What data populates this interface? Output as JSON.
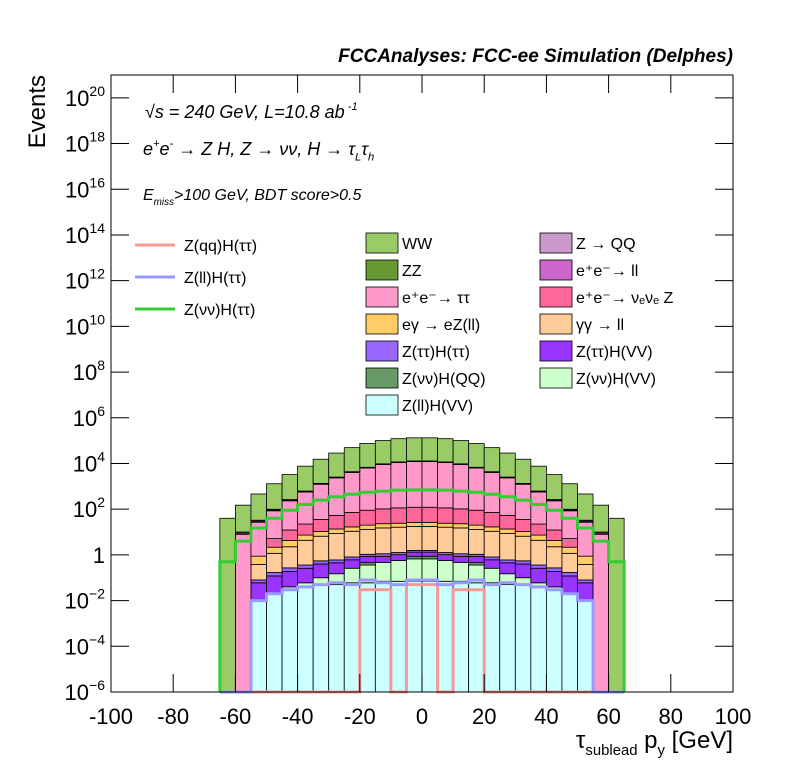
{
  "chart_data": {
    "type": "stacked_histogram",
    "title": "FCCAnalyses: FCC-ee Simulation (Delphes)",
    "annotations": [
      [
        "√s = 240 GeV, L=10.8 ab",
        {
          "sup": " -1"
        }
      ],
      [
        "e",
        {
          "sup": "+"
        },
        "e",
        {
          "sup": "-"
        },
        " → Z H, Z  → νν, H → τ",
        {
          "sub": "L"
        },
        "τ",
        {
          "sub": "h"
        }
      ],
      [
        "E",
        {
          "sub": "miss"
        },
        ">100 GeV, BDT score>0.5"
      ]
    ],
    "x_label": [
      "τ",
      {
        "sub": "sublead"
      },
      " p",
      {
        "sub": "y"
      },
      " [GeV]"
    ],
    "y_label": "Events",
    "log_y": true,
    "xlim": [
      -100,
      100
    ],
    "xticks": [
      -100,
      -80,
      -60,
      -40,
      -20,
      0,
      20,
      40,
      60,
      80,
      100
    ],
    "ylim": [
      1e-06,
      1e+21
    ],
    "yticks": [
      {
        "value": 1e-06,
        "label": "10",
        "sup": "−6"
      },
      {
        "value": 0.0001,
        "label": "10",
        "sup": "−4"
      },
      {
        "value": 0.01,
        "label": "10",
        "sup": "−2"
      },
      1,
      {
        "value": 100.0,
        "label": "10",
        "sup": "2"
      },
      {
        "value": 10000.0,
        "label": "10",
        "sup": "4"
      },
      {
        "value": 1000000.0,
        "label": "10",
        "sup": "6"
      },
      {
        "value": 100000000.0,
        "label": "10",
        "sup": "8"
      },
      {
        "value": 10000000000.0,
        "label": "10",
        "sup": "10"
      },
      {
        "value": 1000000000000.0,
        "label": "10",
        "sup": "12"
      },
      {
        "value": 100000000000000.0,
        "label": "10",
        "sup": "14"
      },
      {
        "value": 1e+16,
        "label": "10",
        "sup": "16"
      },
      {
        "value": 1e+18,
        "label": "10",
        "sup": "18"
      },
      {
        "value": 1e+20,
        "label": "10",
        "sup": "20"
      }
    ],
    "bins": [
      -65,
      -60,
      -55,
      -50,
      -45,
      -40,
      -35,
      -30,
      -25,
      -20,
      -15,
      -10,
      -5,
      0,
      5,
      10,
      15,
      20,
      25,
      30,
      35,
      40,
      45,
      50,
      55,
      60,
      65
    ],
    "series": [
      {
        "name": "WW",
        "color": "#99cc66",
        "values": [
          40,
          140,
          430,
          1200,
          3000,
          7000,
          14000,
          26000,
          45000,
          68000,
          91000,
          110000,
          120000,
          120000,
          110000,
          91000,
          68000,
          45000,
          26000,
          14000,
          7000,
          3000,
          1200,
          430,
          140,
          40
        ]
      },
      {
        "name": "Z → QQ",
        "color": "#cc99cc",
        "values": [
          0,
          0,
          0,
          0,
          0,
          0,
          0,
          0,
          0,
          0,
          0,
          0,
          150,
          150,
          0,
          0,
          0,
          0,
          0,
          0,
          0,
          0,
          0,
          0,
          0,
          0
        ]
      },
      {
        "name": "ZZ",
        "color": "#669933",
        "values": [
          0,
          1,
          3,
          8,
          20,
          40,
          80,
          150,
          250,
          350,
          450,
          500,
          520,
          520,
          500,
          450,
          350,
          250,
          150,
          80,
          40,
          20,
          8,
          3,
          1,
          0
        ]
      },
      {
        "name": "e⁺e⁻→ ll",
        "color": "#cc66cc",
        "values": [
          0,
          1,
          3,
          6,
          12,
          20,
          30,
          40,
          50,
          60,
          70,
          75,
          80,
          80,
          75,
          70,
          60,
          50,
          40,
          30,
          20,
          12,
          6,
          3,
          1,
          0
        ]
      },
      {
        "name": "e⁺e⁻→ ττ",
        "color": "#ff99cc",
        "values": [
          0,
          8,
          26,
          80,
          220,
          540,
          1200,
          2300,
          4000,
          6300,
          9000,
          11000,
          12000,
          12000,
          11000,
          9000,
          6300,
          4000,
          2300,
          1200,
          540,
          220,
          80,
          26,
          8,
          0
        ]
      },
      {
        "name": "e⁺e⁻→ νₑνₑ Z",
        "color": "#ff6699",
        "values": [
          0,
          0,
          0,
          3,
          8,
          15,
          25,
          40,
          55,
          70,
          80,
          90,
          95,
          95,
          90,
          80,
          70,
          55,
          40,
          25,
          15,
          8,
          3,
          0,
          0,
          0
        ]
      },
      {
        "name": "eγ → eZ(ll)",
        "color": "#ffcc66",
        "values": [
          0,
          0,
          0.5,
          1,
          2,
          3,
          4,
          5,
          6,
          7,
          8,
          8,
          9,
          9,
          8,
          8,
          7,
          6,
          5,
          4,
          3,
          2,
          1,
          0.5,
          0,
          0
        ]
      },
      {
        "name": "γγ → ll",
        "color": "#ffcc99",
        "values": [
          0,
          0,
          0.3,
          1,
          2,
          4,
          6,
          8,
          10,
          12,
          14,
          15,
          16,
          16,
          15,
          14,
          12,
          10,
          8,
          6,
          4,
          2,
          1,
          0.3,
          0,
          0
        ]
      },
      {
        "name": "Z(ττ)H(ττ)",
        "color": "#9966ff",
        "values": [
          0,
          0,
          0.02,
          0.05,
          0.08,
          0.1,
          0.15,
          0.15,
          0.2,
          0.2,
          0.25,
          0.25,
          0.25,
          0.25,
          0.25,
          0.25,
          0.2,
          0.2,
          0.15,
          0.15,
          0.1,
          0.08,
          0.05,
          0.02,
          0,
          0
        ]
      },
      {
        "name": "Z(ττ)H(VV)",
        "color": "#9933ff",
        "values": [
          0,
          0,
          0.05,
          0.1,
          0.15,
          0.2,
          0.3,
          0.3,
          0.35,
          0.4,
          0.4,
          0.45,
          0.45,
          0.45,
          0.45,
          0.4,
          0.4,
          0.35,
          0.3,
          0.3,
          0.2,
          0.15,
          0.1,
          0.05,
          0,
          0
        ]
      },
      {
        "name": "Z(νν)H(QQ)",
        "color": "#669966",
        "values": [
          0,
          0,
          0,
          0,
          0,
          0,
          0,
          0,
          0,
          0.1,
          0,
          0,
          0.2,
          0.2,
          0,
          0,
          0.1,
          0,
          0,
          0,
          0,
          0,
          0,
          0,
          0,
          0
        ]
      },
      {
        "name": "Z(νν)H(VV)",
        "color": "#ccffcc",
        "values": [
          0,
          0,
          0,
          0,
          0.01,
          0.02,
          0.05,
          0.1,
          0.2,
          0.3,
          0.4,
          0.5,
          0.6,
          0.6,
          0.5,
          0.4,
          0.3,
          0.2,
          0.1,
          0.05,
          0.02,
          0.01,
          0,
          0,
          0,
          0
        ]
      },
      {
        "name": "Z(ll)H(VV)",
        "color": "#ccffff",
        "values": [
          0,
          0,
          0.01,
          0.02,
          0.03,
          0.04,
          0.05,
          0.05,
          0.06,
          0.06,
          0.07,
          0.07,
          0.07,
          0.07,
          0.07,
          0.07,
          0.06,
          0.06,
          0.05,
          0.05,
          0.04,
          0.03,
          0.02,
          0.01,
          0,
          0
        ]
      }
    ],
    "lines": [
      {
        "name": "Z(qq)H(ττ)",
        "color": "#f59a94",
        "values": [
          0,
          0,
          0,
          0,
          0,
          0,
          0,
          0,
          0,
          0.03,
          0.03,
          0,
          0.05,
          0.05,
          0,
          0.03,
          0.03,
          0,
          0,
          0,
          0,
          0,
          0,
          0,
          0,
          0
        ]
      },
      {
        "name": "Z(ll)H(ττ)",
        "color": "#9999ff",
        "values": [
          0,
          0,
          0.01,
          0.02,
          0.03,
          0.04,
          0.05,
          0.06,
          0.05,
          0.08,
          0.06,
          0.05,
          0.08,
          0.08,
          0.05,
          0.06,
          0.08,
          0.05,
          0.06,
          0.05,
          0.04,
          0.03,
          0.02,
          0.01,
          0,
          0
        ]
      },
      {
        "name": "Z(νν)H(ττ)",
        "color": "#33cc33",
        "values": [
          0.5,
          4,
          15,
          40,
          90,
          160,
          250,
          350,
          450,
          550,
          620,
          680,
          700,
          700,
          680,
          620,
          550,
          450,
          350,
          250,
          160,
          90,
          40,
          15,
          4,
          0.5
        ]
      }
    ]
  }
}
